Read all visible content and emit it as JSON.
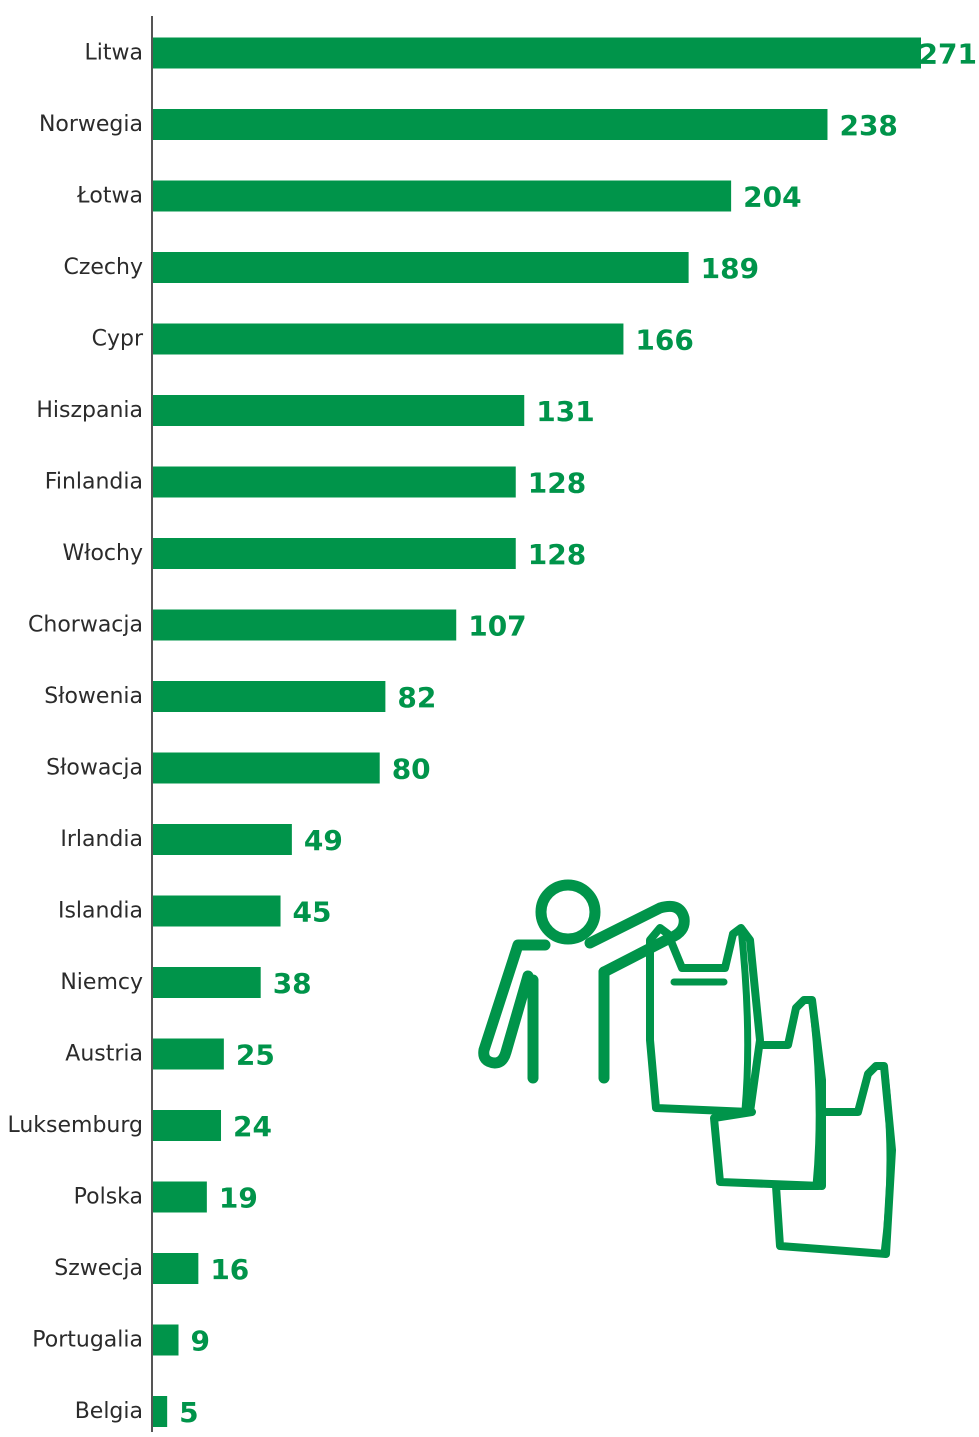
{
  "colors": {
    "bar": "#00944a",
    "value_label": "#00944a",
    "category_label": "#2b2b2b",
    "axis": "#555555",
    "background": "#ffffff"
  },
  "illustration": {
    "icon": "person-carrying-shopping-bags-icon"
  },
  "chart_data": {
    "type": "bar",
    "orientation": "horizontal",
    "title": "",
    "xlabel": "",
    "ylabel": "",
    "grid": false,
    "legend": "none",
    "xlim": [
      0,
      271
    ],
    "categories": [
      "Litwa",
      "Norwegia",
      "Łotwa",
      "Czechy",
      "Cypr",
      "Hiszpania",
      "Finlandia",
      "Włochy",
      "Chorwacja",
      "Słowenia",
      "Słowacja",
      "Irlandia",
      "Islandia",
      "Niemcy",
      "Austria",
      "Luksemburg",
      "Polska",
      "Szwecja",
      "Portugalia",
      "Belgia"
    ],
    "values": [
      271,
      238,
      204,
      189,
      166,
      131,
      128,
      128,
      107,
      82,
      80,
      49,
      45,
      38,
      25,
      24,
      19,
      16,
      9,
      5
    ],
    "data_labels": [
      "271",
      "238",
      "204",
      "189",
      "166",
      "131",
      "128",
      "128",
      "107",
      "82",
      "80",
      "49",
      "45",
      "38",
      "25",
      "24",
      "19",
      "16",
      "9",
      "5"
    ]
  }
}
